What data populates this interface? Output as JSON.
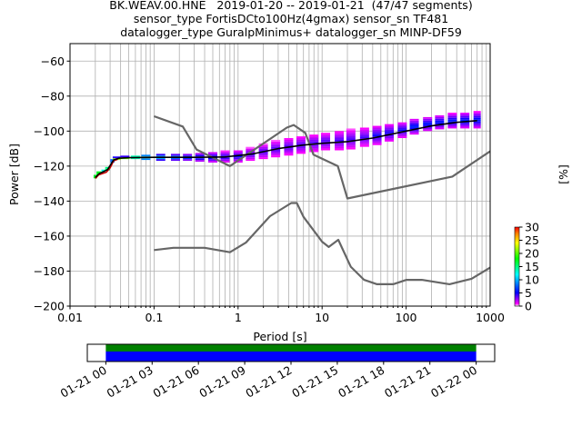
{
  "titles": {
    "line1": "BK.WEAV.00.HNE   2019-01-20 -- 2019-01-21  (47/47 segments)",
    "line2": "sensor_type FortisDCto100Hz(4gmax) sensor_sn TF481",
    "line3": "datalogger_type GuralpMinimus+ datalogger_sn MINP-DF59"
  },
  "chart_data": [
    {
      "type": "heatmap",
      "xlabel": "Period [s]",
      "ylabel": "Power [dB]",
      "xscale": "log",
      "xlim": [
        0.01,
        1000
      ],
      "ylim": [
        -200,
        -50
      ],
      "grid": true,
      "x_ticks": [
        {
          "value": 0.01,
          "label": "0.01"
        },
        {
          "value": 0.1,
          "label": "0.1"
        },
        {
          "value": 1,
          "label": "1"
        },
        {
          "value": 10,
          "label": "10"
        },
        {
          "value": 100,
          "label": "100"
        },
        {
          "value": 1000,
          "label": "1000"
        }
      ],
      "y_ticks": [
        {
          "value": -60,
          "label": "−60"
        },
        {
          "value": -80,
          "label": "−80"
        },
        {
          "value": -100,
          "label": "−100"
        },
        {
          "value": -120,
          "label": "−120"
        },
        {
          "value": -140,
          "label": "−140"
        },
        {
          "value": -160,
          "label": "−160"
        },
        {
          "value": -180,
          "label": "−180"
        },
        {
          "value": -200,
          "label": "−200"
        }
      ],
      "colorbar": {
        "label": "[%]",
        "range": [
          0,
          30
        ],
        "ticks": [
          {
            "value": 0,
            "label": "0"
          },
          {
            "value": 5,
            "label": "5"
          },
          {
            "value": 10,
            "label": "10"
          },
          {
            "value": 15,
            "label": "15"
          },
          {
            "value": 20,
            "label": "20"
          },
          {
            "value": 25,
            "label": "25"
          },
          {
            "value": 30,
            "label": "30"
          }
        ],
        "colors": [
          "#ffffff",
          "#ff00ff",
          "#0000ff",
          "#00ffff",
          "#00ff00",
          "#ffff00",
          "#ff8000",
          "#ff0000"
        ]
      },
      "noise_models": {
        "color": "#666666",
        "high": [
          [
            0.1,
            -91.5
          ],
          [
            0.22,
            -97.4
          ],
          [
            0.32,
            -110.5
          ],
          [
            0.8,
            -120
          ],
          [
            3.8,
            -98
          ],
          [
            4.6,
            -96.5
          ],
          [
            6.3,
            -101
          ],
          [
            7.9,
            -113.5
          ],
          [
            15.4,
            -120
          ],
          [
            20,
            -138.5
          ],
          [
            354.8,
            -126
          ],
          [
            1000,
            -111.5
          ]
        ],
        "low": [
          [
            0.1,
            -168
          ],
          [
            0.17,
            -166.7
          ],
          [
            0.4,
            -166.7
          ],
          [
            0.8,
            -169.2
          ],
          [
            1.24,
            -163.7
          ],
          [
            2.4,
            -148.6
          ],
          [
            4.3,
            -141.1
          ],
          [
            5,
            -141.1
          ],
          [
            6,
            -149
          ],
          [
            10,
            -163.2
          ],
          [
            12,
            -166.2
          ],
          [
            15.6,
            -162.1
          ],
          [
            21.9,
            -177.5
          ],
          [
            31.6,
            -185
          ],
          [
            45,
            -187.5
          ],
          [
            70,
            -187.5
          ],
          [
            101,
            -185
          ],
          [
            154,
            -185
          ],
          [
            328,
            -187.5
          ],
          [
            600,
            -184.4
          ],
          [
            1000,
            -178
          ]
        ]
      },
      "mean_curve": {
        "color": "#000000",
        "points": [
          [
            0.02,
            -126.5
          ],
          [
            0.022,
            -124.5
          ],
          [
            0.028,
            -122
          ],
          [
            0.033,
            -116.5
          ],
          [
            0.038,
            -115.5
          ],
          [
            0.05,
            -115.2
          ],
          [
            0.1,
            -115
          ],
          [
            0.3,
            -115
          ],
          [
            0.7,
            -114.8
          ],
          [
            1.5,
            -113
          ],
          [
            3,
            -110
          ],
          [
            6,
            -108
          ],
          [
            10,
            -107
          ],
          [
            20,
            -106
          ],
          [
            40,
            -104
          ],
          [
            100,
            -100
          ],
          [
            200,
            -97
          ],
          [
            400,
            -95
          ],
          [
            700,
            -94
          ]
        ]
      },
      "extreme_curve": {
        "color": "#cc0000",
        "points": [
          [
            0.02,
            -127
          ],
          [
            0.022,
            -125
          ],
          [
            0.027,
            -123.5
          ],
          [
            0.03,
            -121
          ],
          [
            0.033,
            -117
          ],
          [
            0.037,
            -116
          ]
        ]
      },
      "psd_bands": [
        [
          0.02,
          -127,
          -125,
          30
        ],
        [
          0.022,
          -125,
          -123,
          30
        ],
        [
          0.025,
          -124,
          -122,
          22
        ],
        [
          0.028,
          -122.5,
          -120.5,
          26
        ],
        [
          0.032,
          -118,
          -116,
          14
        ],
        [
          0.036,
          -116.5,
          -115,
          30
        ],
        [
          0.045,
          -116,
          -114.5,
          28
        ],
        [
          0.06,
          -116,
          -114,
          24
        ],
        [
          0.08,
          -116.5,
          -113.5,
          20
        ],
        [
          0.12,
          -117,
          -113,
          12
        ],
        [
          0.18,
          -117,
          -113,
          10
        ],
        [
          0.25,
          -117,
          -113,
          8
        ],
        [
          0.35,
          -117.5,
          -112.5,
          7
        ],
        [
          0.5,
          -118,
          -112,
          6
        ],
        [
          0.7,
          -118,
          -111.5,
          5
        ],
        [
          1,
          -118,
          -111,
          5
        ],
        [
          1.4,
          -117,
          -109.5,
          4
        ],
        [
          2,
          -116,
          -107.5,
          4
        ],
        [
          2.8,
          -115,
          -105.5,
          4
        ],
        [
          4,
          -114,
          -104,
          4
        ],
        [
          5.6,
          -113,
          -103,
          4
        ],
        [
          8,
          -112,
          -102,
          4
        ],
        [
          11,
          -111,
          -101,
          4
        ],
        [
          16,
          -111,
          -100,
          4
        ],
        [
          22,
          -110.5,
          -99,
          4
        ],
        [
          32,
          -109,
          -98,
          4
        ],
        [
          45,
          -108,
          -97,
          5
        ],
        [
          63,
          -106,
          -96,
          5
        ],
        [
          90,
          -104,
          -95,
          5
        ],
        [
          125,
          -102,
          -93,
          6
        ],
        [
          180,
          -100,
          -92,
          6
        ],
        [
          250,
          -99,
          -91,
          6
        ],
        [
          355,
          -98.5,
          -90,
          6
        ],
        [
          500,
          -98.5,
          -89.5,
          6
        ],
        [
          700,
          -98.5,
          -89,
          6
        ]
      ]
    },
    {
      "type": "timeline",
      "x_ticks": [
        {
          "value": 0,
          "label": "01-21 00"
        },
        {
          "value": 3,
          "label": "01-21 03"
        },
        {
          "value": 6,
          "label": "01-21 06"
        },
        {
          "value": 9,
          "label": "01-21 09"
        },
        {
          "value": 12,
          "label": "01-21 12"
        },
        {
          "value": 15,
          "label": "01-21 15"
        },
        {
          "value": 18,
          "label": "01-21 18"
        },
        {
          "value": 21,
          "label": "01-21 21"
        },
        {
          "value": 24,
          "label": "01-22 00"
        }
      ],
      "xlim": [
        -1.2,
        25.2
      ],
      "coverage_start": 0,
      "coverage_end": 24,
      "colors": {
        "data": "#008000",
        "used": "#0000ff"
      }
    }
  ]
}
